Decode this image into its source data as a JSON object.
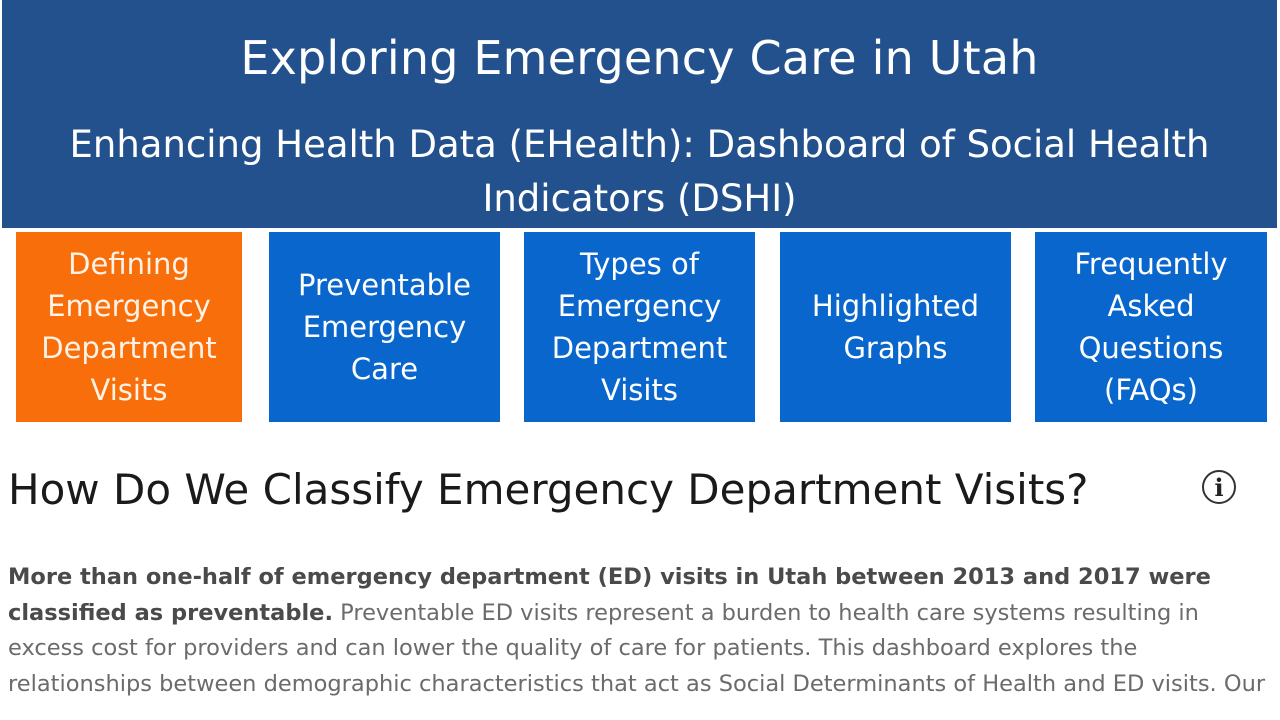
{
  "banner": {
    "title": "Exploring Emergency Care in Utah",
    "subtitle": "Enhancing Health Data (EHealth): Dashboard of Social Health Indicators (DSHI)"
  },
  "nav": {
    "tiles": [
      {
        "label": "Defining Emergency Department Visits",
        "state": "active",
        "color": "#f86e0a"
      },
      {
        "label": "Preventable Emergency Care",
        "state": "inactive",
        "color": "#0866cc"
      },
      {
        "label": "Types of Emergency Department Visits",
        "state": "inactive",
        "color": "#0866cc"
      },
      {
        "label": "Highlighted Graphs",
        "state": "inactive",
        "color": "#0866cc"
      },
      {
        "label": "Frequently Asked Questions (FAQs)",
        "state": "inactive",
        "color": "#0866cc"
      }
    ]
  },
  "section": {
    "heading": "How Do We Classify Emergency Department Visits?",
    "info_icon": "info-icon",
    "lead_text": "More than one-half of emergency department (ED) visits in Utah between 2013 and 2017 were classified as preventable.",
    "body_text": " Preventable ED visits represent a burden to health care systems resulting in excess cost for providers and can lower the quality of care for patients. This dashboard explores the relationships between demographic characteristics that act as Social Determinants of Health and ED visits. Our"
  },
  "colors": {
    "banner": "#22518e",
    "active_tile": "#f86e0a",
    "inactive_tile": "#0866cc"
  }
}
